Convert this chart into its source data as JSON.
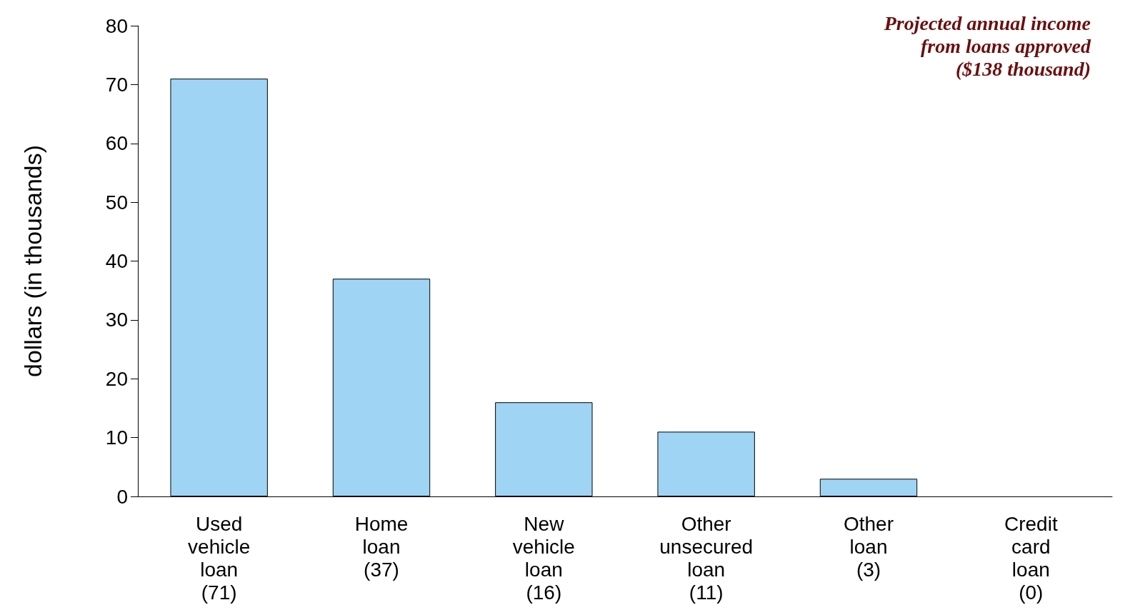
{
  "chart_data": {
    "type": "bar",
    "ylabel": "dollars (in thousands)",
    "categories": [
      "Used\nvehicle\nloan\n(71)",
      "Home\nloan\n(37)",
      "New\nvehicle\nloan\n(16)",
      "Other\nunsecured\nloan\n(11)",
      "Other\nloan\n(3)",
      "Credit\ncard\nloan\n(0)"
    ],
    "values": [
      71,
      37,
      16,
      11,
      3,
      0
    ],
    "color": "#a0d4f4",
    "ylim": [
      0,
      80
    ],
    "yticks": [
      0,
      10,
      20,
      30,
      40,
      50,
      60,
      70,
      80
    ],
    "grid": false,
    "annotations": [
      "Projected annual income\nfrom loans approved\n($138 thousand)"
    ]
  }
}
